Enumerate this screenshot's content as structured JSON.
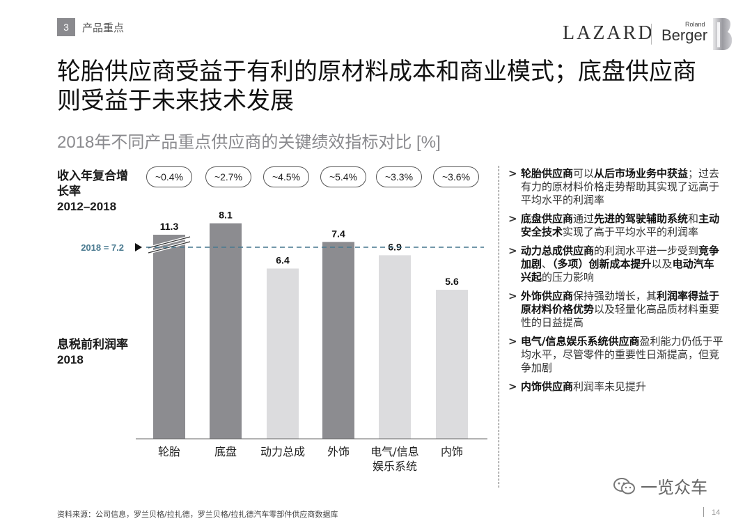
{
  "header": {
    "section_number": "3",
    "section_label": "产品重点"
  },
  "logos": {
    "lazard": "LAZARD",
    "roland": "Roland",
    "berger": "Berger"
  },
  "title": "轮胎供应商受益于有利的原材料成本和商业模式；底盘供应商则受益于未来技术发展",
  "subtitle": "2018年不同产品重点供应商的关键绩效指标对比 [%]",
  "cagr_label": {
    "line1": "收入年复合增",
    "line2": "长率",
    "years": "2012–2018"
  },
  "ebit_label": {
    "line1": "息税前利润率",
    "years": "2018"
  },
  "cagr_values": [
    "~0.4%",
    "~2.7%",
    "~4.5%",
    "~5.4%",
    "~3.3%",
    "~3.6%"
  ],
  "chart_data": {
    "type": "bar",
    "categories": [
      "轮胎",
      "底盘",
      "动力总成",
      "外饰",
      "电气/信息娱乐系统",
      "内饰"
    ],
    "category_lines": [
      [
        "轮胎"
      ],
      [
        "底盘"
      ],
      [
        "动力总成"
      ],
      [
        "外饰"
      ],
      [
        "电气/信息",
        "娱乐系统"
      ],
      [
        "内饰"
      ]
    ],
    "values": [
      11.3,
      8.1,
      6.4,
      7.4,
      6.9,
      5.6
    ],
    "data_labels": [
      "11.3",
      "8.1",
      "6.4",
      "7.4",
      "6.9",
      "5.6"
    ],
    "reference_line": {
      "value": 7.2,
      "label": "2018 = 7.2"
    },
    "truncated_bar_index": 0,
    "colors": {
      "above": "#8c8c90",
      "below": "#dcdcde",
      "reference": "#4a7a90"
    },
    "grid": false
  },
  "bullets": [
    [
      {
        "b": "轮胎供应商"
      },
      {
        "t": "可以"
      },
      {
        "b": "从后市场业务中获益"
      },
      {
        "t": "；过去有力的原材料价格走势帮助其实现了远高于平均水平的利润率"
      }
    ],
    [
      {
        "b": "底盘供应商"
      },
      {
        "t": "通过"
      },
      {
        "b": "先进的驾驶辅助系统"
      },
      {
        "t": "和"
      },
      {
        "b": "主动安全技术"
      },
      {
        "t": "实现了高于平均水平的利润率"
      }
    ],
    [
      {
        "b": "动力总成供应商"
      },
      {
        "t": "的利润水平进一步受到"
      },
      {
        "b": "竞争加剧"
      },
      {
        "t": "、"
      },
      {
        "b": "（多项）创新成本提升"
      },
      {
        "t": "以及"
      },
      {
        "b": "电动汽车兴起"
      },
      {
        "t": "的压力影响"
      }
    ],
    [
      {
        "b": "外饰供应商"
      },
      {
        "t": "保持强劲增长，其"
      },
      {
        "b": "利润率得益于原材料价格优势"
      },
      {
        "t": "以及轻量化高品质材料重要性的日益提高"
      }
    ],
    [
      {
        "b": "电气/信息娱乐系统供应商"
      },
      {
        "t": "盈利能力仍低于平均水平，尽管零件的重要性日渐提高，但竞争加剧"
      }
    ],
    [
      {
        "b": "内饰供应商"
      },
      {
        "t": "利润率未见提升"
      }
    ]
  ],
  "source": "资料来源：公司信息，罗兰贝格/拉扎德，罗兰贝格/拉扎德汽车零部件供应商数据库",
  "page_number": "14",
  "watermark": "一览众车"
}
